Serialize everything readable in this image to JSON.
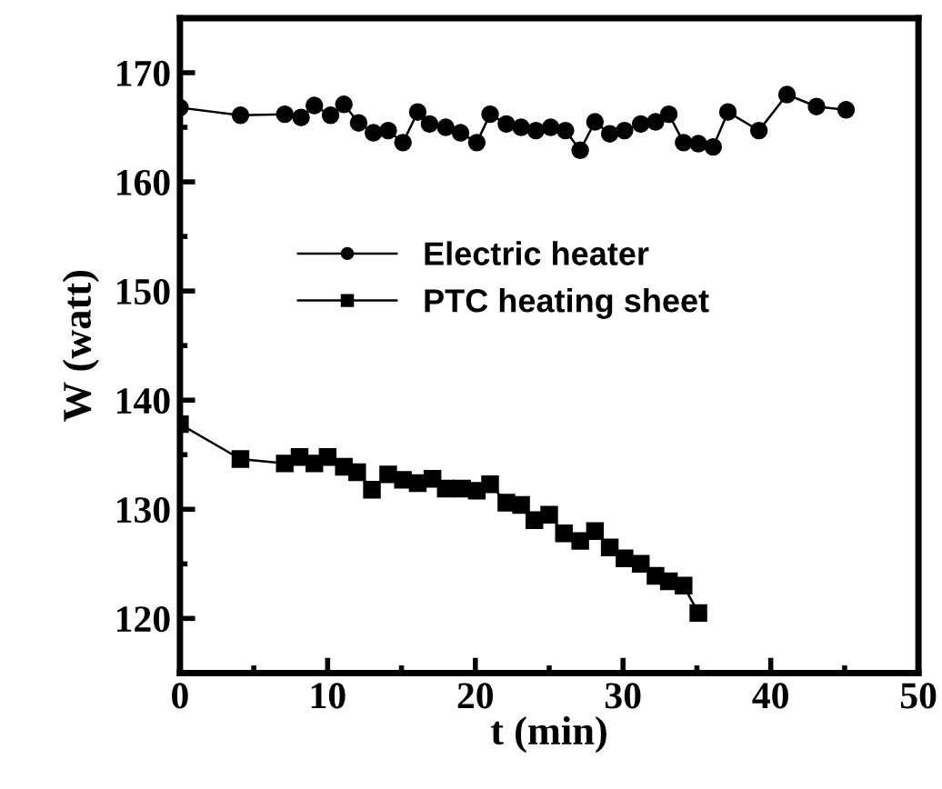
{
  "chart_data": {
    "type": "line",
    "xlabel": "t (min)",
    "ylabel": "W (watt)",
    "xlim": [
      0,
      50
    ],
    "xticks": [
      0,
      10,
      20,
      30,
      40,
      50
    ],
    "ylim": [
      115,
      175
    ],
    "yticks": [
      120,
      130,
      140,
      150,
      160,
      170
    ],
    "grid": false,
    "legend": "center left",
    "series": [
      {
        "name": "Electric heater",
        "color": "#000000",
        "marker": "circle",
        "x": [
          0,
          4.1,
          7.1,
          8.2,
          9.1,
          10.2,
          11.1,
          12.1,
          13.1,
          14.1,
          15.1,
          16.1,
          16.9,
          18.0,
          19.0,
          20.1,
          21.0,
          22.1,
          23.1,
          24.1,
          25.1,
          26.1,
          27.1,
          28.1,
          29.1,
          30.1,
          31.2,
          32.2,
          33.1,
          34.1,
          35.1,
          36.1,
          37.1,
          39.2,
          41.1,
          43.1,
          45.1
        ],
        "values": [
          166.8,
          166.1,
          166.2,
          165.9,
          167.0,
          166.1,
          167.1,
          165.4,
          164.5,
          164.7,
          163.6,
          166.4,
          165.3,
          165.0,
          164.5,
          163.6,
          166.2,
          165.3,
          165.0,
          164.7,
          165.0,
          164.7,
          162.9,
          165.5,
          164.4,
          164.7,
          165.3,
          165.5,
          166.2,
          163.6,
          163.5,
          163.2,
          166.4,
          164.7,
          168.0,
          166.9,
          166.6
        ]
      },
      {
        "name": "PTC heating sheet",
        "color": "#000000",
        "marker": "square",
        "x": [
          0,
          4.1,
          7.1,
          8.1,
          9.1,
          10.0,
          11.1,
          12.0,
          13.0,
          14.1,
          15.1,
          16.1,
          17.1,
          18.0,
          19.1,
          20.1,
          21.0,
          22.1,
          23.1,
          24.0,
          25.0,
          26.0,
          27.1,
          28.1,
          29.1,
          30.1,
          31.2,
          32.2,
          33.1,
          34.1,
          35.1
        ],
        "values": [
          137.8,
          134.6,
          134.2,
          134.8,
          134.2,
          134.8,
          133.9,
          133.4,
          131.8,
          133.2,
          132.7,
          132.4,
          132.8,
          131.9,
          131.9,
          131.7,
          132.3,
          130.6,
          130.4,
          129.0,
          129.5,
          127.8,
          127.1,
          128.0,
          126.5,
          125.5,
          125.0,
          123.9,
          123.4,
          123.0,
          120.5
        ]
      }
    ]
  }
}
